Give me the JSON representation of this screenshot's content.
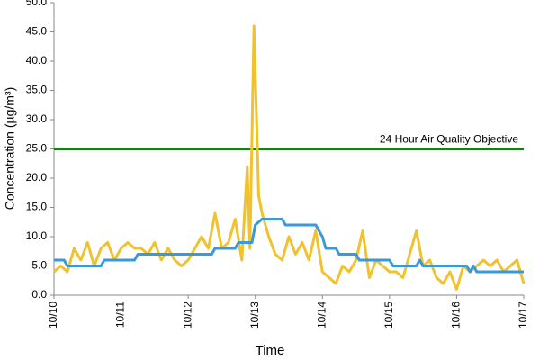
{
  "chart_data": {
    "type": "line",
    "xlabel": "Time",
    "ylabel": "Concentration (µg/m³)",
    "xlim": [
      0,
      7
    ],
    "xticks": [
      {
        "value": 0,
        "label": "10/10"
      },
      {
        "value": 1,
        "label": "10/11"
      },
      {
        "value": 2,
        "label": "10/12"
      },
      {
        "value": 3,
        "label": "10/13"
      },
      {
        "value": 4,
        "label": "10/14"
      },
      {
        "value": 5,
        "label": "10/15"
      },
      {
        "value": 6,
        "label": "10/16"
      },
      {
        "value": 7,
        "label": "10/17"
      }
    ],
    "ylim": [
      0,
      50
    ],
    "yticks": [
      {
        "value": 0,
        "label": "0.0"
      },
      {
        "value": 5,
        "label": "5.0"
      },
      {
        "value": 10,
        "label": "10.0"
      },
      {
        "value": 15,
        "label": "15.0"
      },
      {
        "value": 20,
        "label": "20.0"
      },
      {
        "value": 25,
        "label": "25.0"
      },
      {
        "value": 30,
        "label": "30.0"
      },
      {
        "value": 35,
        "label": "35.0"
      },
      {
        "value": 40,
        "label": "40.0"
      },
      {
        "value": 45,
        "label": "45.0"
      },
      {
        "value": 50,
        "label": "50.0"
      }
    ],
    "grid": false,
    "objective": {
      "value": 25,
      "label": "24 Hour Air Quality Objective",
      "color": "#1f7a1f"
    },
    "series": [
      {
        "color": "#f2c12e",
        "x": [
          0,
          0.1,
          0.2,
          0.3,
          0.4,
          0.5,
          0.6,
          0.7,
          0.8,
          0.9,
          1.0,
          1.1,
          1.2,
          1.3,
          1.4,
          1.5,
          1.6,
          1.7,
          1.8,
          1.9,
          2.0,
          2.1,
          2.2,
          2.3,
          2.4,
          2.5,
          2.6,
          2.7,
          2.8,
          2.88,
          2.92,
          2.98,
          3.05,
          3.1,
          3.2,
          3.3,
          3.4,
          3.5,
          3.6,
          3.7,
          3.8,
          3.9,
          4.0,
          4.1,
          4.2,
          4.3,
          4.4,
          4.5,
          4.6,
          4.7,
          4.8,
          4.9,
          5.0,
          5.1,
          5.2,
          5.3,
          5.4,
          5.5,
          5.6,
          5.7,
          5.8,
          5.9,
          6.0,
          6.1,
          6.2,
          6.3,
          6.4,
          6.5,
          6.6,
          6.7,
          6.8,
          6.9,
          7.0
        ],
        "values": [
          4,
          5,
          4,
          8,
          6,
          9,
          5,
          8,
          9,
          6,
          8,
          9,
          8,
          8,
          7,
          9,
          6,
          8,
          6,
          5,
          6,
          8,
          10,
          8,
          14,
          8,
          9,
          13,
          6,
          22,
          8,
          46,
          17,
          14,
          10,
          7,
          6,
          10,
          7,
          9,
          6,
          11,
          4,
          3,
          2,
          5,
          4,
          6,
          11,
          3,
          6,
          5,
          4,
          4,
          3,
          7,
          11,
          5,
          6,
          3,
          2,
          4,
          1,
          5,
          4,
          5,
          6,
          5,
          6,
          4,
          5,
          6,
          2
        ]
      },
      {
        "color": "#3a9ad9",
        "x": [
          0,
          0.15,
          0.2,
          0.7,
          0.75,
          1.2,
          1.25,
          2.35,
          2.4,
          2.7,
          2.75,
          2.95,
          3.0,
          3.1,
          3.4,
          3.45,
          3.9,
          4.0,
          4.05,
          4.2,
          4.25,
          4.5,
          4.55,
          5.0,
          5.05,
          5.4,
          5.45,
          5.5,
          6.15,
          6.2,
          6.25,
          6.3,
          7.0
        ],
        "values": [
          6,
          6,
          5,
          5,
          6,
          6,
          7,
          7,
          8,
          8,
          9,
          9,
          12,
          13,
          13,
          12,
          12,
          10,
          8,
          8,
          7,
          7,
          6,
          6,
          5,
          5,
          6,
          5,
          5,
          4,
          5,
          4,
          4
        ]
      }
    ]
  }
}
